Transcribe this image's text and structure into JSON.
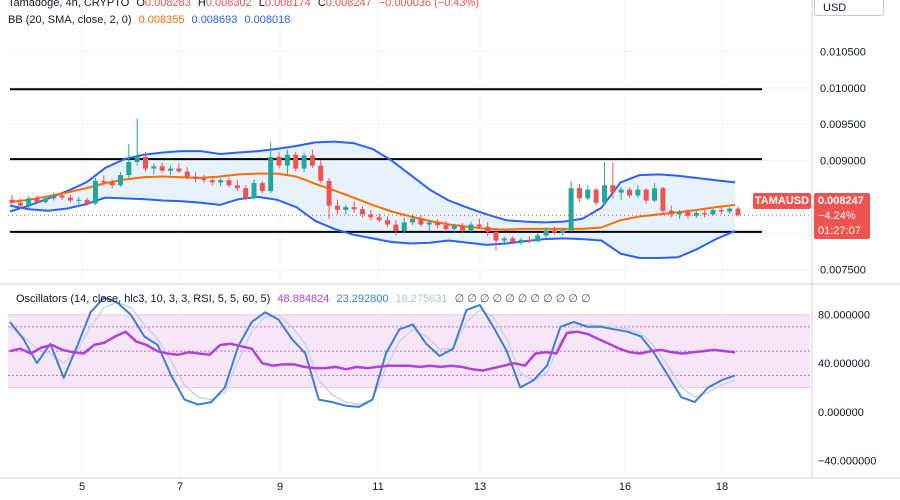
{
  "header": {
    "symbol_line": {
      "name": "Tamadoge, 4h, CRYPTO",
      "open_label": "O",
      "open": "0.008283",
      "high_label": "H",
      "high": "0.008302",
      "low_label": "L",
      "low": "0.008174",
      "close_label": "C",
      "close": "0.008247",
      "change": "−0.000036 (−0.43%)"
    },
    "bb_line": {
      "label": "BB (20, SMA, close, 2, 0)",
      "basis": "0.008355",
      "upper": "0.008693",
      "lower": "0.008018"
    },
    "osc_line": {
      "label": "Oscillators (14, close, hlc3, 10, 3, 3, RSI, 5, 5, 60, 5)",
      "rsi": "48.884824",
      "k": "23.292800",
      "d": "18.275631",
      "zeros": "∅ ∅ ∅ ∅ ∅ ∅ ∅ ∅ ∅ ∅ ∅"
    }
  },
  "currency": "USD",
  "last_price": {
    "tag": "TAMAUSD",
    "value": "0.008247",
    "change": "−4.24%",
    "countdown": "01:27:07"
  },
  "colors": {
    "up": "#26a69a",
    "down": "#ef5350",
    "bb_band": "#2962ff",
    "bb_basis": "#ff6d00",
    "bb_fill": "#e3f0fb",
    "rsi": "#b041d9",
    "stoch_k": "#3d7fd6",
    "stoch_d": "#c9d5e3",
    "osc_band_fill": "#f7e6f8"
  },
  "chart_data": [
    {
      "type": "candlestick",
      "title": "Tamadoge, 4h, CRYPTO",
      "x_labels": [
        "5",
        "7",
        "9",
        "11",
        "13",
        "16",
        "18"
      ],
      "y_ticks": [
        "0.010500",
        "0.010000",
        "0.009500",
        "0.009000",
        "0.008500",
        "0.008000",
        "0.007500"
      ],
      "ylim": [
        0.00733,
        0.01085
      ],
      "horizontal_lines": [
        0.00998,
        0.00902,
        0.00802
      ],
      "candles": [
        {
          "o": 0.00846,
          "h": 0.00853,
          "l": 0.00838,
          "c": 0.00842
        },
        {
          "o": 0.00842,
          "h": 0.00848,
          "l": 0.00833,
          "c": 0.00838
        },
        {
          "o": 0.00838,
          "h": 0.00851,
          "l": 0.00835,
          "c": 0.00848
        },
        {
          "o": 0.00848,
          "h": 0.00852,
          "l": 0.0084,
          "c": 0.00843
        },
        {
          "o": 0.00843,
          "h": 0.0085,
          "l": 0.00841,
          "c": 0.00848
        },
        {
          "o": 0.00848,
          "h": 0.00856,
          "l": 0.00845,
          "c": 0.00852
        },
        {
          "o": 0.00852,
          "h": 0.00855,
          "l": 0.00846,
          "c": 0.00849
        },
        {
          "o": 0.00849,
          "h": 0.00853,
          "l": 0.00842,
          "c": 0.00845
        },
        {
          "o": 0.00845,
          "h": 0.0085,
          "l": 0.0084,
          "c": 0.00846
        },
        {
          "o": 0.00846,
          "h": 0.00849,
          "l": 0.00838,
          "c": 0.00841
        },
        {
          "o": 0.00841,
          "h": 0.00876,
          "l": 0.00839,
          "c": 0.00872
        },
        {
          "o": 0.00872,
          "h": 0.0088,
          "l": 0.00866,
          "c": 0.0087
        },
        {
          "o": 0.0087,
          "h": 0.00874,
          "l": 0.00862,
          "c": 0.00866
        },
        {
          "o": 0.00866,
          "h": 0.00884,
          "l": 0.00864,
          "c": 0.0088
        },
        {
          "o": 0.0088,
          "h": 0.00923,
          "l": 0.00876,
          "c": 0.00898
        },
        {
          "o": 0.00898,
          "h": 0.00958,
          "l": 0.00893,
          "c": 0.00905
        },
        {
          "o": 0.00905,
          "h": 0.00912,
          "l": 0.00885,
          "c": 0.00889
        },
        {
          "o": 0.00889,
          "h": 0.00896,
          "l": 0.00881,
          "c": 0.00892
        },
        {
          "o": 0.00892,
          "h": 0.00897,
          "l": 0.00883,
          "c": 0.00886
        },
        {
          "o": 0.00886,
          "h": 0.00893,
          "l": 0.0088,
          "c": 0.00889
        },
        {
          "o": 0.00889,
          "h": 0.00896,
          "l": 0.00883,
          "c": 0.00885
        },
        {
          "o": 0.00885,
          "h": 0.00891,
          "l": 0.00874,
          "c": 0.00878
        },
        {
          "o": 0.00878,
          "h": 0.00884,
          "l": 0.0087,
          "c": 0.00875
        },
        {
          "o": 0.00875,
          "h": 0.0088,
          "l": 0.00869,
          "c": 0.00873
        },
        {
          "o": 0.00873,
          "h": 0.00878,
          "l": 0.00866,
          "c": 0.0087
        },
        {
          "o": 0.0087,
          "h": 0.00876,
          "l": 0.00865,
          "c": 0.00873
        },
        {
          "o": 0.00873,
          "h": 0.00877,
          "l": 0.00863,
          "c": 0.00866
        },
        {
          "o": 0.00866,
          "h": 0.00873,
          "l": 0.00858,
          "c": 0.00862
        },
        {
          "o": 0.00862,
          "h": 0.00866,
          "l": 0.00845,
          "c": 0.00848
        },
        {
          "o": 0.00848,
          "h": 0.00874,
          "l": 0.00846,
          "c": 0.00869
        },
        {
          "o": 0.00869,
          "h": 0.00872,
          "l": 0.00855,
          "c": 0.00858
        },
        {
          "o": 0.00858,
          "h": 0.00925,
          "l": 0.00855,
          "c": 0.00905
        },
        {
          "o": 0.00905,
          "h": 0.00912,
          "l": 0.00889,
          "c": 0.00893
        },
        {
          "o": 0.00893,
          "h": 0.00915,
          "l": 0.00879,
          "c": 0.00908
        },
        {
          "o": 0.00908,
          "h": 0.00912,
          "l": 0.00885,
          "c": 0.00889
        },
        {
          "o": 0.00889,
          "h": 0.00911,
          "l": 0.00884,
          "c": 0.00907
        },
        {
          "o": 0.00907,
          "h": 0.00915,
          "l": 0.0089,
          "c": 0.00893
        },
        {
          "o": 0.00893,
          "h": 0.009,
          "l": 0.00869,
          "c": 0.00872
        },
        {
          "o": 0.00872,
          "h": 0.00876,
          "l": 0.0082,
          "c": 0.00838
        },
        {
          "o": 0.00838,
          "h": 0.00846,
          "l": 0.00826,
          "c": 0.00832
        },
        {
          "o": 0.00832,
          "h": 0.00839,
          "l": 0.00826,
          "c": 0.00836
        },
        {
          "o": 0.00836,
          "h": 0.00844,
          "l": 0.00828,
          "c": 0.00833
        },
        {
          "o": 0.00833,
          "h": 0.00837,
          "l": 0.00822,
          "c": 0.00826
        },
        {
          "o": 0.00826,
          "h": 0.00832,
          "l": 0.00818,
          "c": 0.00822
        },
        {
          "o": 0.00822,
          "h": 0.00827,
          "l": 0.00815,
          "c": 0.00818
        },
        {
          "o": 0.00818,
          "h": 0.00823,
          "l": 0.00808,
          "c": 0.00812
        },
        {
          "o": 0.00812,
          "h": 0.00818,
          "l": 0.00797,
          "c": 0.00803
        },
        {
          "o": 0.00803,
          "h": 0.00822,
          "l": 0.008,
          "c": 0.00815
        },
        {
          "o": 0.00815,
          "h": 0.00826,
          "l": 0.00811,
          "c": 0.0082
        },
        {
          "o": 0.0082,
          "h": 0.00825,
          "l": 0.00809,
          "c": 0.00812
        },
        {
          "o": 0.00812,
          "h": 0.00818,
          "l": 0.00803,
          "c": 0.00815
        },
        {
          "o": 0.00815,
          "h": 0.00819,
          "l": 0.00807,
          "c": 0.00811
        },
        {
          "o": 0.00811,
          "h": 0.00817,
          "l": 0.00802,
          "c": 0.00806
        },
        {
          "o": 0.00806,
          "h": 0.00813,
          "l": 0.00801,
          "c": 0.0081
        },
        {
          "o": 0.0081,
          "h": 0.00814,
          "l": 0.008,
          "c": 0.00804
        },
        {
          "o": 0.00804,
          "h": 0.00816,
          "l": 0.00802,
          "c": 0.00812
        },
        {
          "o": 0.00812,
          "h": 0.0082,
          "l": 0.00807,
          "c": 0.00809
        },
        {
          "o": 0.00809,
          "h": 0.00815,
          "l": 0.00796,
          "c": 0.00802
        },
        {
          "o": 0.00802,
          "h": 0.00808,
          "l": 0.00776,
          "c": 0.0079
        },
        {
          "o": 0.0079,
          "h": 0.00795,
          "l": 0.00784,
          "c": 0.00793
        },
        {
          "o": 0.00793,
          "h": 0.00796,
          "l": 0.00785,
          "c": 0.00788
        },
        {
          "o": 0.00788,
          "h": 0.00794,
          "l": 0.00784,
          "c": 0.00791
        },
        {
          "o": 0.00791,
          "h": 0.00796,
          "l": 0.00786,
          "c": 0.00789
        },
        {
          "o": 0.00789,
          "h": 0.008,
          "l": 0.00787,
          "c": 0.00797
        },
        {
          "o": 0.00797,
          "h": 0.00808,
          "l": 0.00794,
          "c": 0.00804
        },
        {
          "o": 0.00804,
          "h": 0.00809,
          "l": 0.00798,
          "c": 0.00801
        },
        {
          "o": 0.00801,
          "h": 0.00806,
          "l": 0.00797,
          "c": 0.00804
        },
        {
          "o": 0.00804,
          "h": 0.00872,
          "l": 0.00802,
          "c": 0.00862
        },
        {
          "o": 0.00862,
          "h": 0.00868,
          "l": 0.00843,
          "c": 0.00848
        },
        {
          "o": 0.00848,
          "h": 0.00866,
          "l": 0.00845,
          "c": 0.0086
        },
        {
          "o": 0.0086,
          "h": 0.00862,
          "l": 0.00838,
          "c": 0.00842
        },
        {
          "o": 0.00842,
          "h": 0.00898,
          "l": 0.0084,
          "c": 0.00866
        },
        {
          "o": 0.00866,
          "h": 0.00898,
          "l": 0.00848,
          "c": 0.00856
        },
        {
          "o": 0.00856,
          "h": 0.00864,
          "l": 0.00846,
          "c": 0.0086
        },
        {
          "o": 0.0086,
          "h": 0.00863,
          "l": 0.00849,
          "c": 0.00852
        },
        {
          "o": 0.00852,
          "h": 0.00866,
          "l": 0.00849,
          "c": 0.0086
        },
        {
          "o": 0.0086,
          "h": 0.00862,
          "l": 0.00841,
          "c": 0.00845
        },
        {
          "o": 0.00845,
          "h": 0.00869,
          "l": 0.00843,
          "c": 0.00862
        },
        {
          "o": 0.00862,
          "h": 0.00864,
          "l": 0.00826,
          "c": 0.00831
        },
        {
          "o": 0.00831,
          "h": 0.00838,
          "l": 0.00822,
          "c": 0.00826
        },
        {
          "o": 0.00826,
          "h": 0.00832,
          "l": 0.0082,
          "c": 0.00829
        },
        {
          "o": 0.00829,
          "h": 0.00833,
          "l": 0.0082,
          "c": 0.00824
        },
        {
          "o": 0.00824,
          "h": 0.00831,
          "l": 0.00821,
          "c": 0.00828
        },
        {
          "o": 0.00828,
          "h": 0.00832,
          "l": 0.00822,
          "c": 0.00826
        },
        {
          "o": 0.00826,
          "h": 0.00834,
          "l": 0.00824,
          "c": 0.00832
        },
        {
          "o": 0.00832,
          "h": 0.00836,
          "l": 0.00826,
          "c": 0.0083
        },
        {
          "o": 0.0083,
          "h": 0.00836,
          "l": 0.00827,
          "c": 0.00834
        },
        {
          "o": 0.00834,
          "h": 0.00837,
          "l": 0.00823,
          "c": 0.00825
        }
      ],
      "bb_upper": [
        0.0083,
        0.00838,
        0.00848,
        0.00858,
        0.0087,
        0.0089,
        0.00902,
        0.00908,
        0.00911,
        0.00913,
        0.00913,
        0.00909,
        0.00911,
        0.00913,
        0.00916,
        0.0092,
        0.00925,
        0.00926,
        0.00924,
        0.00916,
        0.009,
        0.0088,
        0.0086,
        0.00845,
        0.00835,
        0.00826,
        0.00818,
        0.00816,
        0.00815,
        0.00816,
        0.0082,
        0.00835,
        0.0087,
        0.0088,
        0.00881,
        0.00879,
        0.00876,
        0.00873,
        0.0087
      ],
      "bb_basis": [
        0.00843,
        0.00846,
        0.00851,
        0.00856,
        0.00862,
        0.00869,
        0.00874,
        0.00877,
        0.00878,
        0.00877,
        0.00876,
        0.00878,
        0.00881,
        0.00882,
        0.00882,
        0.00878,
        0.00868,
        0.00859,
        0.00849,
        0.00839,
        0.0083,
        0.00823,
        0.00817,
        0.00812,
        0.00809,
        0.00806,
        0.00805,
        0.00806,
        0.00806,
        0.00806,
        0.00806,
        0.00808,
        0.00818,
        0.00823,
        0.00826,
        0.00829,
        0.00832,
        0.00836,
        0.00839
      ],
      "bb_lower": [
        0.00838,
        0.00833,
        0.00831,
        0.00834,
        0.0084,
        0.00849,
        0.00848,
        0.00847,
        0.00845,
        0.00844,
        0.00842,
        0.00839,
        0.00847,
        0.0085,
        0.00846,
        0.00836,
        0.00817,
        0.00806,
        0.00798,
        0.00793,
        0.00788,
        0.00786,
        0.00787,
        0.0079,
        0.00787,
        0.00784,
        0.00786,
        0.00789,
        0.00792,
        0.00793,
        0.00792,
        0.0079,
        0.00772,
        0.00766,
        0.00766,
        0.00767,
        0.00778,
        0.00792,
        0.00803
      ],
      "bb_lower_note": "values sampled at regular intervals along the time axis"
    },
    {
      "type": "line",
      "title": "Oscillators (14, close, hlc3, 10, 3, 3, RSI, 5, 5, 60, 5)",
      "y_ticks": [
        "80.000000",
        "40.000000",
        "0.000000",
        "−40.000000"
      ],
      "ylim": [
        -48,
        88
      ],
      "band_levels": [
        20,
        30,
        50,
        70,
        80
      ],
      "series": [
        {
          "name": "RSI",
          "values": [
            50,
            52,
            48,
            53,
            55,
            51,
            49,
            48,
            55,
            57,
            62,
            66,
            58,
            55,
            50,
            48,
            47,
            49,
            48,
            47,
            55,
            56,
            54,
            52,
            40,
            38,
            39,
            39,
            37,
            36,
            36,
            37,
            35,
            37,
            36,
            37,
            38,
            38,
            38,
            37,
            38,
            37,
            38,
            37,
            35,
            34,
            36,
            38,
            40,
            38,
            48,
            49,
            48,
            65,
            66,
            64,
            60,
            56,
            52,
            49,
            48,
            50,
            51,
            49,
            48,
            49,
            50,
            51,
            50,
            49
          ]
        },
        {
          "name": "Stoch K",
          "values": [
            74,
            60,
            40,
            56,
            28,
            54,
            82,
            94,
            90,
            80,
            62,
            55,
            30,
            10,
            6,
            8,
            20,
            54,
            74,
            82,
            76,
            60,
            48,
            10,
            8,
            5,
            4,
            10,
            48,
            68,
            72,
            56,
            46,
            52,
            84,
            88,
            70,
            50,
            20,
            26,
            38,
            70,
            74,
            70,
            70,
            68,
            66,
            62,
            48,
            30,
            12,
            8,
            20,
            26,
            30
          ]
        },
        {
          "name": "Stoch D",
          "values": [
            70,
            62,
            52,
            48,
            40,
            50,
            70,
            86,
            90,
            86,
            72,
            60,
            42,
            22,
            12,
            10,
            16,
            42,
            66,
            78,
            80,
            70,
            56,
            26,
            14,
            8,
            6,
            10,
            36,
            58,
            68,
            62,
            52,
            52,
            74,
            84,
            78,
            60,
            32,
            26,
            32,
            58,
            70,
            72,
            71,
            70,
            68,
            65,
            54,
            38,
            20,
            12,
            16,
            22,
            26
          ]
        }
      ]
    }
  ]
}
